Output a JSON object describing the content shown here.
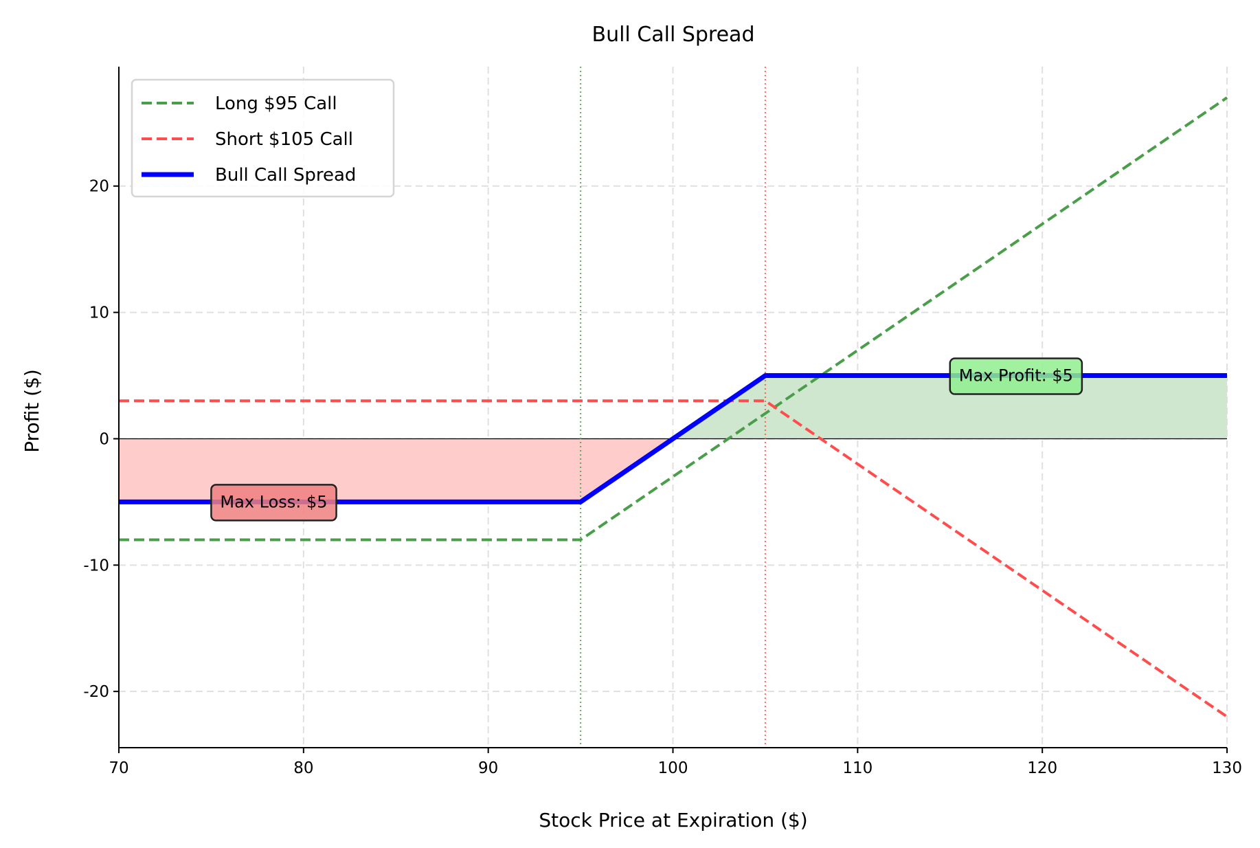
{
  "chart_data": {
    "type": "line",
    "title": "Bull Call Spread",
    "xlabel": "Stock Price at Expiration ($)",
    "ylabel": "Profit ($)",
    "xlim": [
      70,
      130
    ],
    "ylim": [
      -24.45,
      29.45
    ],
    "xticks": [
      70,
      80,
      90,
      100,
      110,
      120,
      130
    ],
    "yticks": [
      -20,
      -10,
      0,
      10,
      20
    ],
    "grid": true,
    "legend_position": "top-left",
    "series": [
      {
        "name": "Long $95 Call",
        "color": "#4a9e4a",
        "style": "dashed",
        "x": [
          70,
          95,
          130
        ],
        "y": [
          -8,
          -8,
          27
        ]
      },
      {
        "name": "Short $105 Call",
        "color": "#ff4d4d",
        "style": "dashed",
        "x": [
          70,
          105,
          130
        ],
        "y": [
          3,
          3,
          -22
        ]
      },
      {
        "name": "Bull Call Spread",
        "color": "#0000ff",
        "style": "solid",
        "x": [
          70,
          95,
          105,
          130
        ],
        "y": [
          -5,
          -5,
          5,
          5
        ]
      }
    ],
    "vlines": [
      {
        "x": 95,
        "color": "#4a9e4a",
        "style": "dotted"
      },
      {
        "x": 105,
        "color": "#ff4d4d",
        "style": "dotted"
      }
    ],
    "fills": [
      {
        "region": "loss",
        "color": "#ffcccc"
      },
      {
        "region": "profit",
        "color": "#cfe6cf"
      }
    ],
    "annotations": [
      {
        "text": "Max Loss: $5",
        "x": 75,
        "y": -5,
        "color": "#f08080"
      },
      {
        "text": "Max Profit: $5",
        "x": 115,
        "y": 5,
        "color": "#90ee90"
      }
    ]
  }
}
